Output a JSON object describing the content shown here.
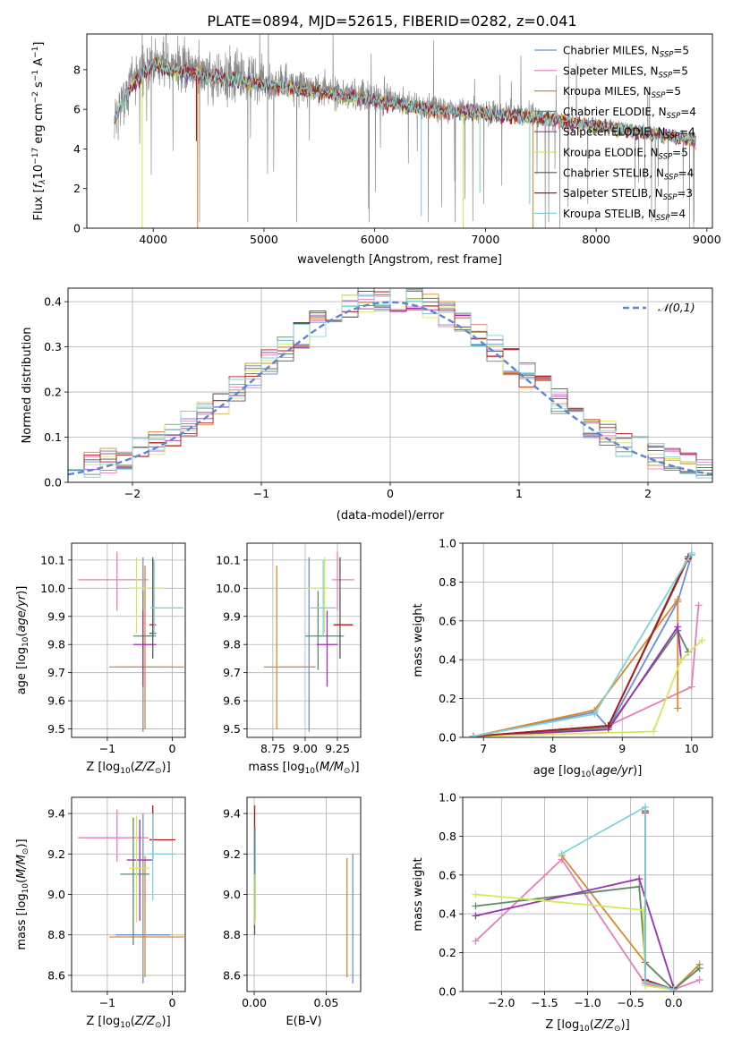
{
  "title": "PLATE=0894, MJD=52615, FIBERID=0282, z=0.041",
  "colors": {
    "Chabrier MILES": "#6a8fd8",
    "Salpeter MILES": "#e67fb9",
    "Kroupa MILES": "#d98a2b",
    "Chabrier ELODIE": "#5f8a6a",
    "Salpeter ELODIE": "#9b30b5",
    "Kroupa ELODIE": "#d4e85a",
    "Chabrier STELIB": "#555555",
    "Salpeter STELIB": "#b01818",
    "Kroupa STELIB": "#7fd3d8",
    "gaussian": "#5b86d6",
    "spectrum": "#8a8a8a"
  },
  "chart_data": [
    {
      "id": "spectrum",
      "type": "line",
      "xlabel": "wavelength [Angstrom, rest frame]",
      "ylabel": "Flux [f_λ 10^-17 erg cm^-2 s^-1 A^-1]",
      "xlim": [
        3400,
        9050
      ],
      "ylim": [
        0,
        9.8
      ],
      "xticks": [
        4000,
        5000,
        6000,
        7000,
        8000,
        9000
      ],
      "yticks": [
        0,
        2,
        4,
        6,
        8
      ],
      "legend_position": "upper-right",
      "legend": [
        {
          "name": "Chabrier MILES",
          "nssp": "5"
        },
        {
          "name": "Salpeter MILES",
          "nssp": "5"
        },
        {
          "name": "Kroupa MILES",
          "nssp": "5"
        },
        {
          "name": "Chabrier ELODIE",
          "nssp": "4"
        },
        {
          "name": "Salpeter ELODIE",
          "nssp": "4"
        },
        {
          "name": "Kroupa ELODIE",
          "nssp": "5"
        },
        {
          "name": "Chabrier STELIB",
          "nssp": "4"
        },
        {
          "name": "Salpeter STELIB",
          "nssp": "3"
        },
        {
          "name": "Kroupa STELIB",
          "nssp": "4"
        }
      ],
      "data_range": [
        3650,
        8900
      ],
      "continuum": [
        [
          3650,
          5.6
        ],
        [
          3800,
          7.3
        ],
        [
          4000,
          8.4
        ],
        [
          4200,
          8.1
        ],
        [
          4500,
          7.8
        ],
        [
          5000,
          7.4
        ],
        [
          5500,
          7.0
        ],
        [
          6000,
          6.6
        ],
        [
          6500,
          6.1
        ],
        [
          7000,
          5.9
        ],
        [
          7500,
          5.7
        ],
        [
          8000,
          5.3
        ],
        [
          8500,
          4.9
        ],
        [
          8900,
          4.6
        ]
      ],
      "model_drops": [
        {
          "model": "Kroupa MILES",
          "x": 4400,
          "y": 0
        },
        {
          "model": "Kroupa MILES",
          "x": 7430,
          "y": 0
        },
        {
          "model": "Kroupa ELODIE",
          "x": 3900,
          "y": 0
        },
        {
          "model": "Kroupa ELODIE",
          "x": 6800,
          "y": 0
        },
        {
          "model": "Salpeter STELIB",
          "x": 4390,
          "y": 4.4
        },
        {
          "model": "Kroupa STELIB",
          "x": 6420,
          "y": 0.6
        },
        {
          "model": "Kroupa STELIB",
          "x": 6950,
          "y": 1.8
        },
        {
          "model": "Kroupa STELIB",
          "x": 7400,
          "y": 1.2
        }
      ]
    },
    {
      "id": "residuals",
      "type": "histogram",
      "xlabel": "(data-model)/error",
      "ylabel": "Normed distribution",
      "xlim": [
        -2.5,
        2.5
      ],
      "ylim": [
        0,
        0.43
      ],
      "xticks": [
        -2,
        -1,
        0,
        1,
        2
      ],
      "yticks": [
        0.0,
        0.1,
        0.2,
        0.3,
        0.4
      ],
      "grid": true,
      "legend_position": "upper-right",
      "gaussian_label": "𝒩(0,1)",
      "bins": 40,
      "binwidth": 0.125
    },
    {
      "id": "age-z",
      "type": "errorbar",
      "xlabel": "Z [log10(Z/Z⊙)]",
      "ylabel": "age [log10(age/yr)]",
      "xlim": [
        -1.55,
        0.2
      ],
      "ylim": [
        9.47,
        10.16
      ],
      "xticks": [
        -1,
        0
      ],
      "yticks": [
        9.5,
        9.6,
        9.7,
        9.8,
        9.9,
        10.0,
        10.1
      ],
      "grid": true,
      "points": [
        {
          "model": "Chabrier MILES",
          "x": -0.45,
          "xerr": [
            0.42,
            0.42
          ],
          "y": 9.72,
          "yerr": [
            0.23,
            0.39
          ]
        },
        {
          "model": "Salpeter MILES",
          "x": -0.85,
          "xerr": [
            0.6,
            0.48
          ],
          "y": 10.03,
          "yerr": [
            0.11,
            0.1
          ]
        },
        {
          "model": "Kroupa MILES",
          "x": -0.42,
          "xerr": [
            0.55,
            0.6
          ],
          "y": 9.72,
          "yerr": [
            0.22,
            0.36
          ]
        },
        {
          "model": "Chabrier ELODIE",
          "x": -0.45,
          "xerr": [
            0.15,
            0.2
          ],
          "y": 9.83,
          "yerr": [
            0.12,
            0.16
          ]
        },
        {
          "model": "Salpeter ELODIE",
          "x": -0.45,
          "xerr": [
            0.15,
            0.2
          ],
          "y": 9.8,
          "yerr": [
            0.15,
            0.12
          ]
        },
        {
          "model": "Kroupa ELODIE",
          "x": -0.55,
          "xerr": [
            0.12,
            0.45
          ],
          "y": 10.0,
          "yerr": [
            0.16,
            0.11
          ]
        },
        {
          "model": "Chabrier STELIB",
          "x": -0.3,
          "xerr": [
            0.05,
            0.05
          ],
          "y": 9.84,
          "yerr": [
            0.09,
            0.27
          ]
        },
        {
          "model": "Salpeter STELIB",
          "x": -0.3,
          "xerr": [
            0.05,
            0.05
          ],
          "y": 9.87,
          "yerr": [
            0.0,
            0.0
          ]
        },
        {
          "model": "Kroupa STELIB",
          "x": -0.28,
          "xerr": [
            0.06,
            0.45
          ],
          "y": 9.93,
          "yerr": [
            0.1,
            0.17
          ]
        }
      ]
    },
    {
      "id": "age-mass",
      "type": "errorbar",
      "xlabel": "mass [log10(M/M⊙)]",
      "ylabel": "",
      "xlim": [
        8.55,
        9.43
      ],
      "ylim": [
        9.47,
        10.16
      ],
      "xticks": [
        8.75,
        9.0,
        9.25
      ],
      "yticks": [
        9.5,
        9.6,
        9.7,
        9.8,
        9.9,
        10.0,
        10.1
      ],
      "grid": true,
      "points": [
        {
          "model": "Chabrier MILES",
          "x": 9.03,
          "xerr": [
            0.23,
            0.05
          ],
          "y": 9.72,
          "yerr": [
            0.23,
            0.39
          ]
        },
        {
          "model": "Salpeter MILES",
          "x": 9.25,
          "xerr": [
            0.04,
            0.13
          ],
          "y": 10.03,
          "yerr": [
            0.11,
            0.1
          ]
        },
        {
          "model": "Kroupa MILES",
          "x": 8.78,
          "xerr": [
            0.1,
            0.3
          ],
          "y": 9.72,
          "yerr": [
            0.22,
            0.36
          ]
        },
        {
          "model": "Chabrier ELODIE",
          "x": 9.1,
          "xerr": [
            0.1,
            0.2
          ],
          "y": 9.83,
          "yerr": [
            0.12,
            0.16
          ]
        },
        {
          "model": "Salpeter ELODIE",
          "x": 9.17,
          "xerr": [
            0.08,
            0.08
          ],
          "y": 9.8,
          "yerr": [
            0.15,
            0.12
          ]
        },
        {
          "model": "Kroupa ELODIE",
          "x": 9.15,
          "xerr": [
            0.15,
            0.05
          ],
          "y": 10.0,
          "yerr": [
            0.16,
            0.11
          ]
        },
        {
          "model": "Chabrier STELIB",
          "x": 9.27,
          "xerr": [
            0.0,
            0.0
          ],
          "y": 9.84,
          "yerr": [
            0.09,
            0.27
          ]
        },
        {
          "model": "Salpeter STELIB",
          "x": 9.27,
          "xerr": [
            0.05,
            0.1
          ],
          "y": 9.87,
          "yerr": [
            0.0,
            0.0
          ]
        },
        {
          "model": "Kroupa STELIB",
          "x": 9.14,
          "xerr": [
            0.1,
            0.1
          ],
          "y": 9.93,
          "yerr": [
            0.1,
            0.17
          ]
        }
      ]
    },
    {
      "id": "mass-weight-age",
      "type": "line",
      "xlabel": "age [log10(age/yr)]",
      "ylabel": "mass weight",
      "xlim": [
        6.7,
        10.3
      ],
      "ylim": [
        0,
        1.0
      ],
      "xticks": [
        7,
        8,
        9,
        10
      ],
      "yticks": [
        0.0,
        0.2,
        0.4,
        0.6,
        0.8,
        1.0
      ],
      "grid": true,
      "series": [
        {
          "model": "Chabrier MILES",
          "x": [
            6.85,
            8.6,
            8.8,
            9.8,
            10.0
          ],
          "y": [
            0.005,
            0.13,
            0.05,
            0.7,
            0.94
          ]
        },
        {
          "model": "Salpeter MILES",
          "x": [
            6.85,
            8.8,
            10.0,
            10.1
          ],
          "y": [
            0.005,
            0.06,
            0.26,
            0.68
          ]
        },
        {
          "model": "Kroupa MILES",
          "x": [
            6.85,
            8.6,
            9.8,
            9.8
          ],
          "y": [
            0.005,
            0.14,
            0.71,
            0.15
          ]
        },
        {
          "model": "Chabrier ELODIE",
          "x": [
            6.85,
            8.8,
            9.8,
            9.95
          ],
          "y": [
            0.005,
            0.05,
            0.55,
            0.44
          ]
        },
        {
          "model": "Salpeter ELODIE",
          "x": [
            6.85,
            8.8,
            9.8,
            9.85
          ],
          "y": [
            0.005,
            0.04,
            0.57,
            0.4
          ]
        },
        {
          "model": "Kroupa ELODIE",
          "x": [
            6.85,
            9.45,
            9.85,
            10.15
          ],
          "y": [
            0.005,
            0.03,
            0.4,
            0.5
          ]
        },
        {
          "model": "Chabrier STELIB",
          "x": [
            6.85,
            8.8,
            9.95
          ],
          "y": [
            0.005,
            0.06,
            0.93
          ]
        },
        {
          "model": "Salpeter STELIB",
          "x": [
            6.85,
            8.8,
            9.95
          ],
          "y": [
            0.005,
            0.06,
            0.92
          ]
        },
        {
          "model": "Kroupa STELIB",
          "x": [
            6.85,
            8.6,
            10.0
          ],
          "y": [
            0.005,
            0.12,
            0.95
          ]
        }
      ]
    },
    {
      "id": "mass-z",
      "type": "errorbar",
      "xlabel": "Z [log10(Z/Z⊙)]",
      "ylabel": "mass [log10(M/M⊙)]",
      "xlim": [
        -1.55,
        0.2
      ],
      "ylim": [
        8.52,
        9.48
      ],
      "xticks": [
        -1,
        0
      ],
      "yticks": [
        8.6,
        8.8,
        9.0,
        9.2,
        9.4
      ],
      "grid": true,
      "points": [
        {
          "model": "Chabrier MILES",
          "x": -0.45,
          "xerr": [
            0.42,
            0.42
          ],
          "y": 8.8,
          "yerr": [
            0.24,
            0.6
          ]
        },
        {
          "model": "Salpeter MILES",
          "x": -0.85,
          "xerr": [
            0.6,
            0.48
          ],
          "y": 9.28,
          "yerr": [
            0.12,
            0.14
          ]
        },
        {
          "model": "Kroupa MILES",
          "x": -0.42,
          "xerr": [
            0.55,
            0.6
          ],
          "y": 8.79,
          "yerr": [
            0.2,
            0.4
          ]
        },
        {
          "model": "Chabrier ELODIE",
          "x": -0.6,
          "xerr": [
            0.2,
            0.25
          ],
          "y": 9.1,
          "yerr": [
            0.35,
            0.28
          ]
        },
        {
          "model": "Salpeter ELODIE",
          "x": -0.5,
          "xerr": [
            0.2,
            0.2
          ],
          "y": 9.17,
          "yerr": [
            0.3,
            0.2
          ]
        },
        {
          "model": "Kroupa ELODIE",
          "x": -0.55,
          "xerr": [
            0.12,
            0.2
          ],
          "y": 9.13,
          "yerr": [
            0.27,
            0.26
          ]
        },
        {
          "model": "Chabrier STELIB",
          "x": -0.3,
          "xerr": [
            0.05,
            0.05
          ],
          "y": 9.27,
          "yerr": [
            0.1,
            0.1
          ]
        },
        {
          "model": "Salpeter STELIB",
          "x": -0.3,
          "xerr": [
            0.05,
            0.35
          ],
          "y": 9.27,
          "yerr": [
            0.07,
            0.17
          ]
        },
        {
          "model": "Kroupa STELIB",
          "x": -0.3,
          "xerr": [
            0.05,
            0.35
          ],
          "y": 9.2,
          "yerr": [
            0.23,
            0.2
          ]
        }
      ]
    },
    {
      "id": "mass-ebv",
      "type": "errorbar",
      "xlabel": "E(B-V)",
      "ylabel": "",
      "xlim": [
        -0.005,
        0.074
      ],
      "ylim": [
        8.52,
        9.48
      ],
      "xticks": [
        0.0,
        0.05
      ],
      "yticks": [
        8.6,
        8.8,
        9.0,
        9.2,
        9.4
      ],
      "grid": true,
      "points": [
        {
          "model": "Chabrier MILES",
          "x": 0.0685,
          "xerr": [
            0,
            0
          ],
          "y": 8.8,
          "yerr": [
            0.24,
            0.4
          ]
        },
        {
          "model": "Kroupa MILES",
          "x": 0.0645,
          "xerr": [
            0,
            0
          ],
          "y": 8.79,
          "yerr": [
            0.2,
            0.39
          ]
        },
        {
          "model": "Salpeter STELIB",
          "x": 0.0003,
          "xerr": [
            0,
            0
          ],
          "y": 9.27,
          "yerr": [
            0.07,
            0.17
          ]
        },
        {
          "model": "Chabrier STELIB",
          "x": 0.0003,
          "xerr": [
            0,
            0
          ],
          "y": 9.2,
          "yerr": [
            0.4,
            0.1
          ]
        },
        {
          "model": "Kroupa STELIB",
          "x": 0.0008,
          "xerr": [
            0,
            0
          ],
          "y": 9.13,
          "yerr": [
            0.25,
            0.2
          ]
        },
        {
          "model": "Kroupa ELODIE",
          "x": 0.0005,
          "xerr": [
            0,
            0
          ],
          "y": 9.0,
          "yerr": [
            0.15,
            0.1
          ]
        }
      ]
    },
    {
      "id": "mass-weight-z",
      "type": "line",
      "xlabel": "Z [log10(Z/Z⊙)]",
      "ylabel": "mass weight",
      "xlim": [
        -2.45,
        0.45
      ],
      "ylim": [
        0,
        1.0
      ],
      "xticks": [
        -2.0,
        -1.5,
        -1.0,
        -0.5,
        0.0
      ],
      "yticks": [
        0.0,
        0.2,
        0.4,
        0.6,
        0.8,
        1.0
      ],
      "grid": true,
      "series": [
        {
          "model": "Chabrier MILES",
          "x": [
            -0.33,
            -0.33,
            -0.33,
            0.0,
            0.3
          ],
          "y": [
            0.05,
            0.93,
            0.05,
            0.01,
            0.12
          ]
        },
        {
          "model": "Salpeter MILES",
          "x": [
            -2.3,
            -1.3,
            -0.33,
            0.0,
            0.3
          ],
          "y": [
            0.26,
            0.68,
            0.04,
            0.01,
            0.06
          ]
        },
        {
          "model": "Kroupa MILES",
          "x": [
            -1.3,
            -0.33,
            0.0,
            0.3
          ],
          "y": [
            0.7,
            0.15,
            0.01,
            0.14
          ]
        },
        {
          "model": "Chabrier ELODIE",
          "x": [
            -2.3,
            -0.4,
            -0.33,
            0.0,
            0.3
          ],
          "y": [
            0.44,
            0.54,
            0.15,
            0.01,
            0.12
          ]
        },
        {
          "model": "Salpeter ELODIE",
          "x": [
            -2.3,
            -0.4,
            0.0
          ],
          "y": [
            0.39,
            0.58,
            0.02
          ]
        },
        {
          "model": "Kroupa ELODIE",
          "x": [
            -2.3,
            -0.35,
            -0.33,
            0.0
          ],
          "y": [
            0.5,
            0.42,
            0.03,
            0.01
          ]
        },
        {
          "model": "Chabrier STELIB",
          "x": [
            -0.33,
            -0.33,
            0.0
          ],
          "y": [
            0.93,
            0.06,
            0.01
          ]
        },
        {
          "model": "Salpeter STELIB",
          "x": [
            -0.33,
            -0.33,
            0.0
          ],
          "y": [
            0.92,
            0.06,
            0.01
          ]
        },
        {
          "model": "Kroupa STELIB",
          "x": [
            -1.3,
            -0.33,
            -0.33,
            0.0
          ],
          "y": [
            0.71,
            0.95,
            0.05,
            0.01
          ]
        }
      ]
    }
  ]
}
